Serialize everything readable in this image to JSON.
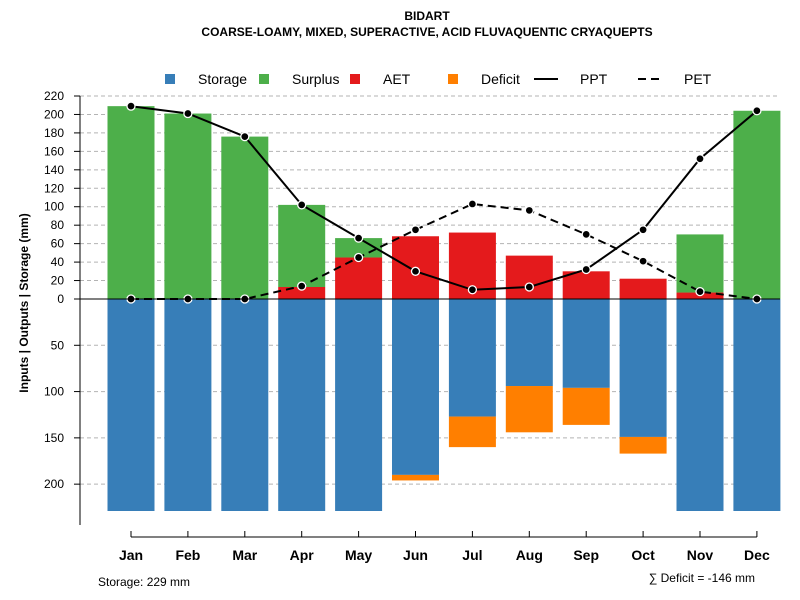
{
  "chart_data": {
    "type": "bar",
    "title": "BIDART",
    "subtitle": "COARSE-LOAMY, MIXED, SUPERACTIVE, ACID FLUVAQUENTIC CRYAQUEPTS",
    "ylabel": "Inputs | Outputs | Storage    (mm)",
    "categories": [
      "Jan",
      "Feb",
      "Mar",
      "Apr",
      "May",
      "Jun",
      "Jul",
      "Aug",
      "Sep",
      "Oct",
      "Nov",
      "Dec"
    ],
    "upper_ylim": [
      0,
      220
    ],
    "upper_ticks": [
      "0",
      "20",
      "40",
      "60",
      "80",
      "100",
      "120",
      "140",
      "160",
      "180",
      "200",
      "220"
    ],
    "lower_ylim": [
      0,
      229
    ],
    "lower_ticks": [
      "50",
      "100",
      "150",
      "200"
    ],
    "grid": true,
    "legend": {
      "position": "top",
      "items": [
        {
          "label": "Storage",
          "kind": "box",
          "color": "#377EB8"
        },
        {
          "label": "Surplus",
          "kind": "box",
          "color": "#4DAF4A"
        },
        {
          "label": "AET",
          "kind": "box",
          "color": "#E41A1C"
        },
        {
          "label": "Deficit",
          "kind": "box",
          "color": "#FF7F00"
        },
        {
          "label": "PPT",
          "kind": "solid-line",
          "color": "#000000"
        },
        {
          "label": "PET",
          "kind": "dashed-line",
          "color": "#000000"
        }
      ]
    },
    "series": [
      {
        "name": "AET",
        "color": "#E41A1C",
        "values": [
          0,
          0,
          0,
          13,
          45,
          68,
          72,
          47,
          30,
          22,
          7,
          0
        ]
      },
      {
        "name": "Surplus",
        "color": "#4DAF4A",
        "values": [
          209,
          201,
          176,
          89,
          21,
          0,
          0,
          0,
          0,
          0,
          63,
          204
        ]
      },
      {
        "name": "Storage",
        "color": "#377EB8",
        "values": [
          229,
          229,
          229,
          229,
          229,
          190,
          127,
          94,
          96,
          149,
          229,
          229
        ]
      },
      {
        "name": "Deficit",
        "color": "#FF7F00",
        "values": [
          0,
          0,
          0,
          0,
          0,
          6,
          33,
          50,
          40,
          18,
          0,
          0
        ]
      },
      {
        "name": "PPT",
        "color": "#000000",
        "values": [
          209,
          201,
          176,
          102,
          66,
          30,
          10,
          13,
          32,
          75,
          152,
          204
        ]
      },
      {
        "name": "PET",
        "color": "#000000",
        "values": [
          0,
          0,
          0,
          14,
          45,
          75,
          103,
          96,
          70,
          41,
          8,
          0
        ]
      }
    ],
    "storage_note": "Storage: 229 mm",
    "deficit_note": "∑ Deficit = -146 mm"
  }
}
